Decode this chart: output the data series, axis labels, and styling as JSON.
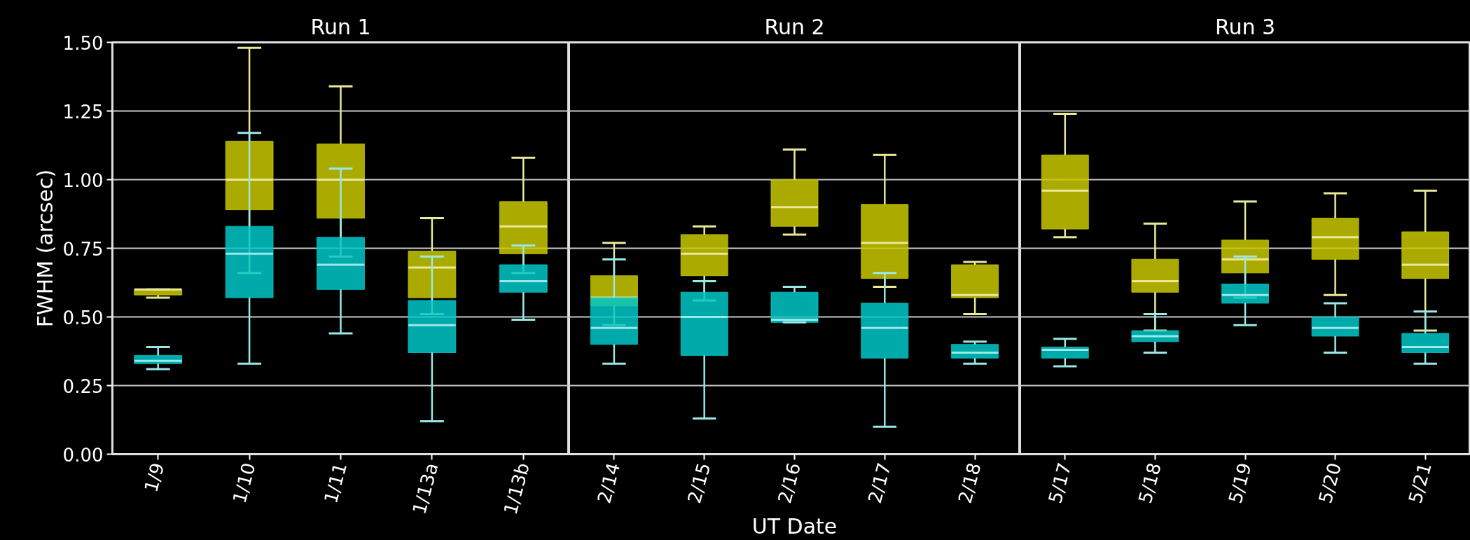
{
  "chart_data": [
    {
      "type": "box",
      "title": "Run 1",
      "ylabel": "FWHM (arcsec)",
      "categories": [
        "1/9",
        "1/10",
        "1/11",
        "1/13a",
        "1/13b"
      ],
      "ylim": [
        0,
        1.5
      ],
      "yticks": [
        {
          "value": 0,
          "label": "0.00"
        },
        {
          "value": 0.25,
          "label": "0.25"
        },
        {
          "value": 0.5,
          "label": "0.50"
        },
        {
          "value": 0.75,
          "label": "0.75"
        },
        {
          "value": 1.0,
          "label": "1.00"
        },
        {
          "value": 1.25,
          "label": "1.25"
        },
        {
          "value": 1.5,
          "label": "1.50"
        }
      ],
      "grid": "y",
      "series": [
        {
          "color": "#c8c800",
          "boxes": [
            {
              "low": 0.57,
              "q1": 0.58,
              "median": 0.6,
              "q3": 0.6,
              "high": 0.6
            },
            {
              "low": 0.66,
              "q1": 0.89,
              "median": 1.0,
              "q3": 1.14,
              "high": 1.48
            },
            {
              "low": 0.72,
              "q1": 0.86,
              "median": 1.0,
              "q3": 1.13,
              "high": 1.34
            },
            {
              "low": 0.51,
              "q1": 0.57,
              "median": 0.68,
              "q3": 0.74,
              "high": 0.86
            },
            {
              "low": 0.66,
              "q1": 0.73,
              "median": 0.83,
              "q3": 0.92,
              "high": 1.08
            }
          ]
        },
        {
          "color": "#00c8c8",
          "boxes": [
            {
              "low": 0.31,
              "q1": 0.33,
              "median": 0.34,
              "q3": 0.36,
              "high": 0.39
            },
            {
              "low": 0.33,
              "q1": 0.57,
              "median": 0.73,
              "q3": 0.83,
              "high": 1.17
            },
            {
              "low": 0.44,
              "q1": 0.6,
              "median": 0.69,
              "q3": 0.79,
              "high": 1.04
            },
            {
              "low": 0.12,
              "q1": 0.37,
              "median": 0.47,
              "q3": 0.56,
              "high": 0.72
            },
            {
              "low": 0.49,
              "q1": 0.59,
              "median": 0.63,
              "q3": 0.69,
              "high": 0.76
            }
          ]
        }
      ]
    },
    {
      "type": "box",
      "title": "Run 2",
      "xlabel": "UT Date",
      "categories": [
        "2/14",
        "2/15",
        "2/16",
        "2/17",
        "2/18"
      ],
      "ylim": [
        0,
        1.5
      ],
      "tick_labels": "x",
      "yticks": [
        0,
        0.25,
        0.5,
        0.75,
        1.0,
        1.25,
        1.5
      ],
      "grid": "y",
      "series": [
        {
          "color": "#c8c800",
          "boxes": [
            {
              "low": 0.47,
              "q1": 0.54,
              "median": 0.57,
              "q3": 0.65,
              "high": 0.77
            },
            {
              "low": 0.56,
              "q1": 0.65,
              "median": 0.73,
              "q3": 0.8,
              "high": 0.83
            },
            {
              "low": 0.8,
              "q1": 0.83,
              "median": 0.9,
              "q3": 1.0,
              "high": 1.11
            },
            {
              "low": 0.61,
              "q1": 0.64,
              "median": 0.77,
              "q3": 0.91,
              "high": 1.09
            },
            {
              "low": 0.51,
              "q1": 0.57,
              "median": 0.58,
              "q3": 0.69,
              "high": 0.7
            }
          ]
        },
        {
          "color": "#00c8c8",
          "boxes": [
            {
              "low": 0.33,
              "q1": 0.4,
              "median": 0.46,
              "q3": 0.57,
              "high": 0.71
            },
            {
              "low": 0.13,
              "q1": 0.36,
              "median": 0.5,
              "q3": 0.59,
              "high": 0.63
            },
            {
              "low": 0.48,
              "q1": 0.48,
              "median": 0.49,
              "q3": 0.59,
              "high": 0.61
            },
            {
              "low": 0.1,
              "q1": 0.35,
              "median": 0.46,
              "q3": 0.55,
              "high": 0.66
            },
            {
              "low": 0.33,
              "q1": 0.35,
              "median": 0.37,
              "q3": 0.4,
              "high": 0.41
            }
          ]
        }
      ]
    },
    {
      "type": "box",
      "title": "Run 3",
      "categories": [
        "5/17",
        "5/18",
        "5/19",
        "5/20",
        "5/21"
      ],
      "ylim": [
        0,
        1.5
      ],
      "tick_labels": "x",
      "yticks": [
        0,
        0.25,
        0.5,
        0.75,
        1.0,
        1.25,
        1.5
      ],
      "grid": "y",
      "series": [
        {
          "color": "#c8c800",
          "boxes": [
            {
              "low": 0.79,
              "q1": 0.82,
              "median": 0.96,
              "q3": 1.09,
              "high": 1.24
            },
            {
              "low": 0.45,
              "q1": 0.59,
              "median": 0.63,
              "q3": 0.71,
              "high": 0.84
            },
            {
              "low": 0.57,
              "q1": 0.66,
              "median": 0.71,
              "q3": 0.78,
              "high": 0.92
            },
            {
              "low": 0.58,
              "q1": 0.71,
              "median": 0.79,
              "q3": 0.86,
              "high": 0.95
            },
            {
              "low": 0.45,
              "q1": 0.64,
              "median": 0.69,
              "q3": 0.81,
              "high": 0.96
            }
          ]
        },
        {
          "color": "#00c8c8",
          "boxes": [
            {
              "low": 0.32,
              "q1": 0.35,
              "median": 0.38,
              "q3": 0.39,
              "high": 0.42
            },
            {
              "low": 0.37,
              "q1": 0.41,
              "median": 0.43,
              "q3": 0.45,
              "high": 0.51
            },
            {
              "low": 0.47,
              "q1": 0.55,
              "median": 0.58,
              "q3": 0.62,
              "high": 0.72
            },
            {
              "low": 0.37,
              "q1": 0.43,
              "median": 0.46,
              "q3": 0.5,
              "high": 0.55
            },
            {
              "low": 0.33,
              "q1": 0.37,
              "median": 0.39,
              "q3": 0.44,
              "high": 0.52
            }
          ]
        }
      ]
    }
  ]
}
